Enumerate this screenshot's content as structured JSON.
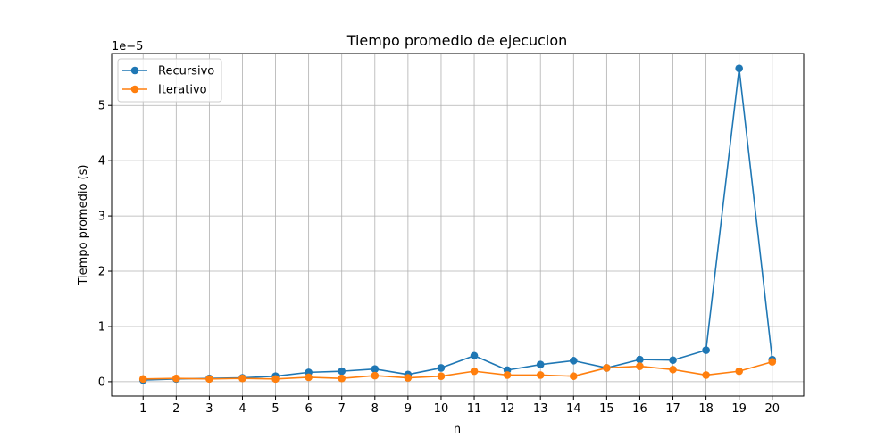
{
  "chart_data": {
    "type": "line",
    "title": "Tiempo promedio de ejecucion",
    "xlabel": "n",
    "ylabel": "Tiempo promedio (s)",
    "offset_text": "1e−5",
    "x": [
      1,
      2,
      3,
      4,
      5,
      6,
      7,
      8,
      9,
      10,
      11,
      12,
      13,
      14,
      15,
      16,
      17,
      18,
      19,
      20
    ],
    "xticks": [
      "1",
      "2",
      "3",
      "4",
      "5",
      "6",
      "7",
      "8",
      "9",
      "10",
      "11",
      "12",
      "13",
      "14",
      "15",
      "16",
      "17",
      "18",
      "19",
      "20"
    ],
    "yticks": [
      0,
      1,
      2,
      3,
      4,
      5
    ],
    "yticklabels": [
      "0",
      "1",
      "2",
      "3",
      "4",
      "5"
    ],
    "xlim": [
      0.05,
      20.95
    ],
    "ylim": [
      -0.26,
      5.94
    ],
    "grid": true,
    "legend_position": "upper-left",
    "series": [
      {
        "name": "Recursivo",
        "color": "#1f77b4",
        "values": [
          0.03,
          0.05,
          0.06,
          0.07,
          0.1,
          0.17,
          0.19,
          0.23,
          0.13,
          0.25,
          0.47,
          0.21,
          0.31,
          0.38,
          0.25,
          0.4,
          0.39,
          0.57,
          5.67,
          0.4
        ]
      },
      {
        "name": "Iterativo",
        "color": "#ff7f0e",
        "values": [
          0.05,
          0.06,
          0.05,
          0.06,
          0.05,
          0.08,
          0.06,
          0.11,
          0.07,
          0.1,
          0.19,
          0.12,
          0.12,
          0.1,
          0.25,
          0.28,
          0.22,
          0.12,
          0.19,
          0.36
        ]
      }
    ]
  }
}
